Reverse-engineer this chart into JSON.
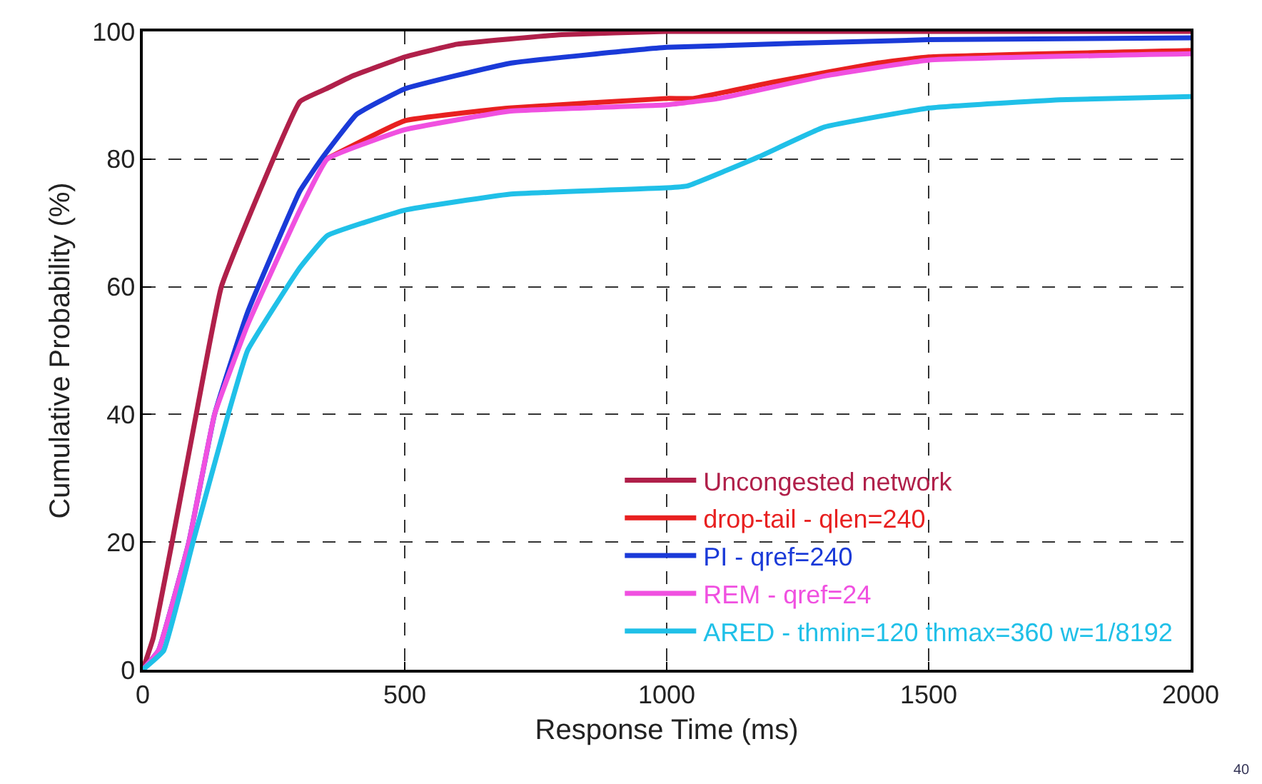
{
  "chart_data": {
    "type": "line",
    "xlabel": "Response Time (ms)",
    "ylabel": "Cumulative Probability (%)",
    "xlim": [
      0,
      2000
    ],
    "xticks": [
      0,
      500,
      1000,
      1500,
      2000
    ],
    "ylim": [
      0,
      100
    ],
    "yticks": [
      0,
      20,
      40,
      60,
      80,
      100
    ],
    "grid": true,
    "legend": "bottom right",
    "marker": "none",
    "line_style": "solid",
    "annotations": [
      "40"
    ],
    "series": [
      {
        "name": "Uncongested network",
        "color": "#b0204a",
        "x": [
          0,
          20,
          56,
          102,
          150,
          300,
          350,
          400,
          500,
          600,
          800,
          1000,
          2000
        ],
        "values": [
          0,
          5,
          20,
          40,
          60,
          89,
          91,
          93,
          96,
          98,
          99.5,
          100,
          100
        ]
      },
      {
        "name": "drop-tail - qlen=240",
        "color": "#e82020",
        "x": [
          350,
          500,
          700,
          1000,
          1050,
          1200,
          1400,
          1500,
          2000
        ],
        "values": [
          80,
          86,
          88,
          89.5,
          89.5,
          92,
          95,
          96,
          97
        ]
      },
      {
        "name": "PI - qref=240",
        "color": "#1a3ad8",
        "x": [
          0,
          30,
          88,
          137,
          200,
          300,
          341,
          408,
          500,
          700,
          1000,
          1500,
          2000
        ],
        "values": [
          0,
          3,
          20,
          40,
          56,
          75,
          80,
          87,
          91,
          95,
          97.5,
          98.7,
          99
        ]
      },
      {
        "name": "REM - qref=24",
        "color": "#f050e0",
        "x": [
          0,
          30,
          88,
          137,
          200,
          300,
          352,
          500,
          700,
          1000,
          1100,
          1300,
          1500,
          2000
        ],
        "values": [
          0,
          3,
          20,
          40,
          54,
          72,
          80,
          84.6,
          87.5,
          88.5,
          89.5,
          93,
          95.5,
          96.5
        ]
      },
      {
        "name": "ARED - thmin=120 thmax=360 w=1/8192",
        "color": "#20c0e8",
        "x": [
          0,
          40,
          96,
          163,
          200,
          300,
          352,
          500,
          700,
          1000,
          1040,
          1177,
          1300,
          1501,
          1750,
          2000
        ],
        "values": [
          0,
          3,
          20,
          40,
          50,
          63,
          68,
          72,
          74.5,
          75.5,
          75.8,
          80.4,
          85,
          88,
          89.3,
          89.8
        ]
      }
    ]
  }
}
